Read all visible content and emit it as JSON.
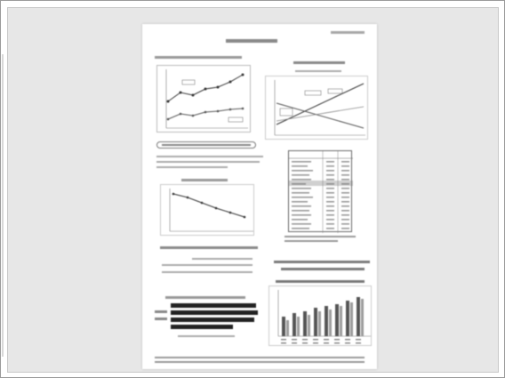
{
  "viewer": {
    "title": "",
    "page_count": 1
  },
  "page": {
    "header_title": "",
    "header_right": "",
    "footer_note": ""
  },
  "colors": {
    "background": "#e7e7e7",
    "page": "#ffffff",
    "frame": "#9a9a9a"
  }
}
